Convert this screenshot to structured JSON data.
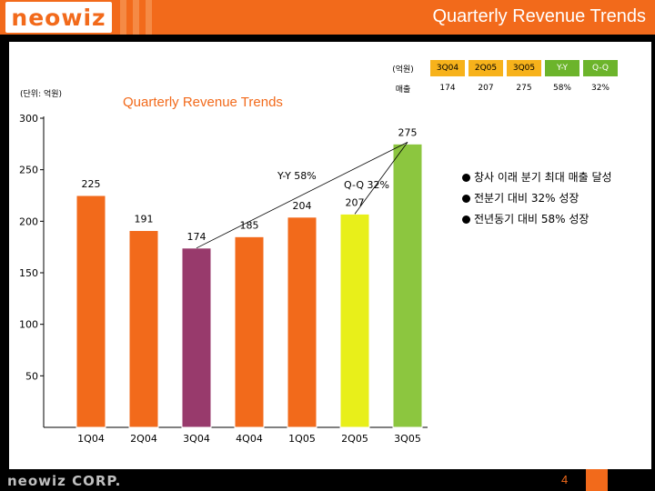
{
  "header": {
    "logo_text": "neowiz",
    "title": "Quarterly Revenue Trends"
  },
  "unit_label": "(단위: 억원)",
  "summary_table": {
    "headers": [
      "(억원)",
      "3Q04",
      "2Q05",
      "3Q05",
      "Y-Y",
      "Q-Q"
    ],
    "row_label": "매출",
    "row_values": [
      "174",
      "207",
      "275",
      "58%",
      "32%"
    ]
  },
  "bullets": [
    "창사 이래 분기 최대 매출 달성",
    "전분기 대비 32% 성장",
    "전년동기 대비 58% 성장"
  ],
  "footer": {
    "logo_text": "neowiz CORP.",
    "page": "4"
  },
  "colors": {
    "orange": "#f26a1b",
    "bar": "#f26a1b",
    "highlight": "#983a6c",
    "current": "#8cc63f",
    "latest": "#e8ef1a"
  },
  "chart_data": {
    "type": "bar",
    "title": "Quarterly Revenue Trends",
    "categories": [
      "1Q04",
      "2Q04",
      "3Q04",
      "4Q04",
      "1Q05",
      "2Q05",
      "3Q05"
    ],
    "values": [
      225,
      191,
      174,
      185,
      204,
      207,
      275
    ],
    "ylim": [
      0,
      300
    ],
    "yticks": [
      300,
      250,
      200,
      150,
      100,
      50
    ],
    "annotations": {
      "yy": "Y-Y 58%",
      "qq": "Q-Q 32%"
    }
  }
}
